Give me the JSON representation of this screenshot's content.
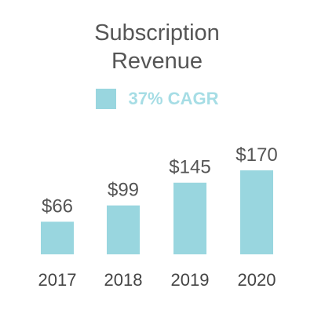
{
  "colors": {
    "bar": "#99d6df",
    "legend_text": "#a6dde5",
    "title_text": "#555555"
  },
  "chart_data": {
    "type": "bar",
    "title": "Subscription\nRevenue",
    "categories": [
      "2017",
      "2018",
      "2019",
      "2020"
    ],
    "series": [
      {
        "name": "37% CAGR",
        "values": [
          66,
          99,
          145,
          170
        ],
        "labels": [
          "$66",
          "$99",
          "$145",
          "$170"
        ]
      }
    ],
    "ylim": [
      0,
      170
    ],
    "grid": false,
    "legend": "top-center"
  }
}
